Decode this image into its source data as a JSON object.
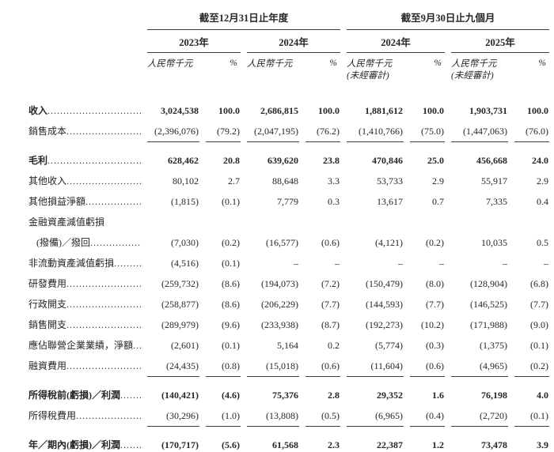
{
  "page": {
    "background_color": "#ffffff",
    "text_color": "#262626",
    "rule_color": "#3d3d3d"
  },
  "table": {
    "period_groups": [
      {
        "title": "截至12月31日止年度",
        "years": [
          {
            "label": "2023年",
            "unit": "人民幣千元",
            "percent_sign": "%",
            "note": ""
          },
          {
            "label": "2024年",
            "unit": "人民幣千元",
            "percent_sign": "%",
            "note": ""
          }
        ]
      },
      {
        "title": "截至9月30日止九個月",
        "years": [
          {
            "label": "2024年",
            "unit": "人民幣千元",
            "percent_sign": "%",
            "note": "(未經審計)"
          },
          {
            "label": "2025年",
            "unit": "人民幣千元",
            "percent_sign": "%",
            "note": "(未經審計)"
          }
        ]
      }
    ],
    "rows": [
      {
        "label": "收入",
        "bold": true,
        "values": [
          "3,024,538",
          "100.0",
          "2,686,815",
          "100.0",
          "1,881,612",
          "100.0",
          "1,903,731",
          "100.0"
        ]
      },
      {
        "label": "銷售成本",
        "underline": true,
        "values": [
          "(2,396,076)",
          "(79.2)",
          "(2,047,195)",
          "(76.2)",
          "(1,410,766)",
          "(75.0)",
          "(1,447,063)",
          "(76.0)"
        ]
      },
      {
        "label": "毛利",
        "bold": true,
        "values": [
          "628,462",
          "20.8",
          "639,620",
          "23.8",
          "470,846",
          "25.0",
          "456,668",
          "24.0"
        ]
      },
      {
        "label": "其他收入",
        "values": [
          "80,102",
          "2.7",
          "88,648",
          "3.3",
          "53,733",
          "2.9",
          "55,917",
          "2.9"
        ]
      },
      {
        "label": "其他損益淨額",
        "values": [
          "(1,815)",
          "(0.1)",
          "7,779",
          "0.3",
          "13,617",
          "0.7",
          "7,335",
          "0.4"
        ]
      },
      {
        "label": "金融資產減值虧損",
        "section_label": true,
        "values": []
      },
      {
        "label": "(撥備)／撥回",
        "indent": true,
        "values": [
          "(7,030)",
          "(0.2)",
          "(16,577)",
          "(0.6)",
          "(4,121)",
          "(0.2)",
          "10,035",
          "0.5"
        ]
      },
      {
        "label": "非流動資產減值虧損",
        "values": [
          "(4,516)",
          "(0.1)",
          "–",
          "–",
          "–",
          "–",
          "–",
          "–"
        ]
      },
      {
        "label": "研發費用",
        "values": [
          "(259,732)",
          "(8.6)",
          "(194,073)",
          "(7.2)",
          "(150,479)",
          "(8.0)",
          "(128,904)",
          "(6.8)"
        ]
      },
      {
        "label": "行政開支",
        "values": [
          "(258,877)",
          "(8.6)",
          "(206,229)",
          "(7.7)",
          "(144,593)",
          "(7.7)",
          "(146,525)",
          "(7.7)"
        ]
      },
      {
        "label": "銷售開支",
        "values": [
          "(289,979)",
          "(9.6)",
          "(233,938)",
          "(8.7)",
          "(192,273)",
          "(10.2)",
          "(171,988)",
          "(9.0)"
        ]
      },
      {
        "label": "應佔聯營企業業績，淨額",
        "values": [
          "(2,601)",
          "(0.1)",
          "5,164",
          "0.2",
          "(5,774)",
          "(0.3)",
          "(1,375)",
          "(0.1)"
        ]
      },
      {
        "label": "融資費用",
        "underline": true,
        "values": [
          "(24,435)",
          "(0.8)",
          "(15,018)",
          "(0.6)",
          "(11,604)",
          "(0.6)",
          "(4,965)",
          "(0.2)"
        ]
      },
      {
        "label": "所得稅前(虧損)／利潤",
        "bold": true,
        "values": [
          "(140,421)",
          "(4.6)",
          "75,376",
          "2.8",
          "29,352",
          "1.6",
          "76,198",
          "4.0"
        ]
      },
      {
        "label": "所得稅費用",
        "underline": true,
        "values": [
          "(30,296)",
          "(1.0)",
          "(13,808)",
          "(0.5)",
          "(6,965)",
          "(0.4)",
          "(2,720)",
          "(0.1)"
        ]
      },
      {
        "label": "年／期內(虧損)／利潤",
        "bold": true,
        "double_underline": true,
        "values": [
          "(170,717)",
          "(5.6)",
          "61,568",
          "2.3",
          "22,387",
          "1.2",
          "73,478",
          "3.9"
        ]
      }
    ]
  }
}
